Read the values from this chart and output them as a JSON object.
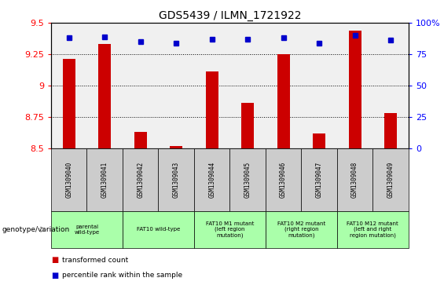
{
  "title": "GDS5439 / ILMN_1721922",
  "samples": [
    "GSM1309040",
    "GSM1309041",
    "GSM1309042",
    "GSM1309043",
    "GSM1309044",
    "GSM1309045",
    "GSM1309046",
    "GSM1309047",
    "GSM1309048",
    "GSM1309049"
  ],
  "transformed_count": [
    9.21,
    9.33,
    8.63,
    8.52,
    9.11,
    8.86,
    9.25,
    8.62,
    9.44,
    8.78
  ],
  "percentile_rank": [
    88,
    89,
    85,
    84,
    87,
    87,
    88,
    84,
    90,
    86
  ],
  "ylim_left": [
    8.5,
    9.5
  ],
  "ylim_right": [
    0,
    100
  ],
  "yticks_left": [
    8.5,
    8.75,
    9.0,
    9.25,
    9.5
  ],
  "ytick_labels_left": [
    "8.5",
    "8.75",
    "9",
    "9.25",
    "9.5"
  ],
  "yticks_right": [
    0,
    25,
    50,
    75,
    100
  ],
  "ytick_labels_right": [
    "0",
    "25",
    "50",
    "75",
    "100%"
  ],
  "bar_color": "#CC0000",
  "dot_color": "#0000CC",
  "bar_baseline": 8.5,
  "groups": [
    {
      "label": "parental\nwild-type",
      "start": 0,
      "end": 1
    },
    {
      "label": "FAT10 wild-type",
      "start": 2,
      "end": 3
    },
    {
      "label": "FAT10 M1 mutant\n(left region\nmutation)",
      "start": 4,
      "end": 5
    },
    {
      "label": "FAT10 M2 mutant\n(right region\nmutation)",
      "start": 6,
      "end": 7
    },
    {
      "label": "FAT10 M12 mutant\n(left and right\nregion mutation)",
      "start": 8,
      "end": 9
    }
  ],
  "group_color": "#aaffaa",
  "sample_row_color": "#cccccc",
  "genotype_label": "genotype/variation",
  "legend_bar_label": "transformed count",
  "legend_dot_label": "percentile rank within the sample",
  "plot_bg_color": "#f0f0f0",
  "title_fontsize": 10,
  "axis_fontsize": 8,
  "bar_width": 0.35
}
